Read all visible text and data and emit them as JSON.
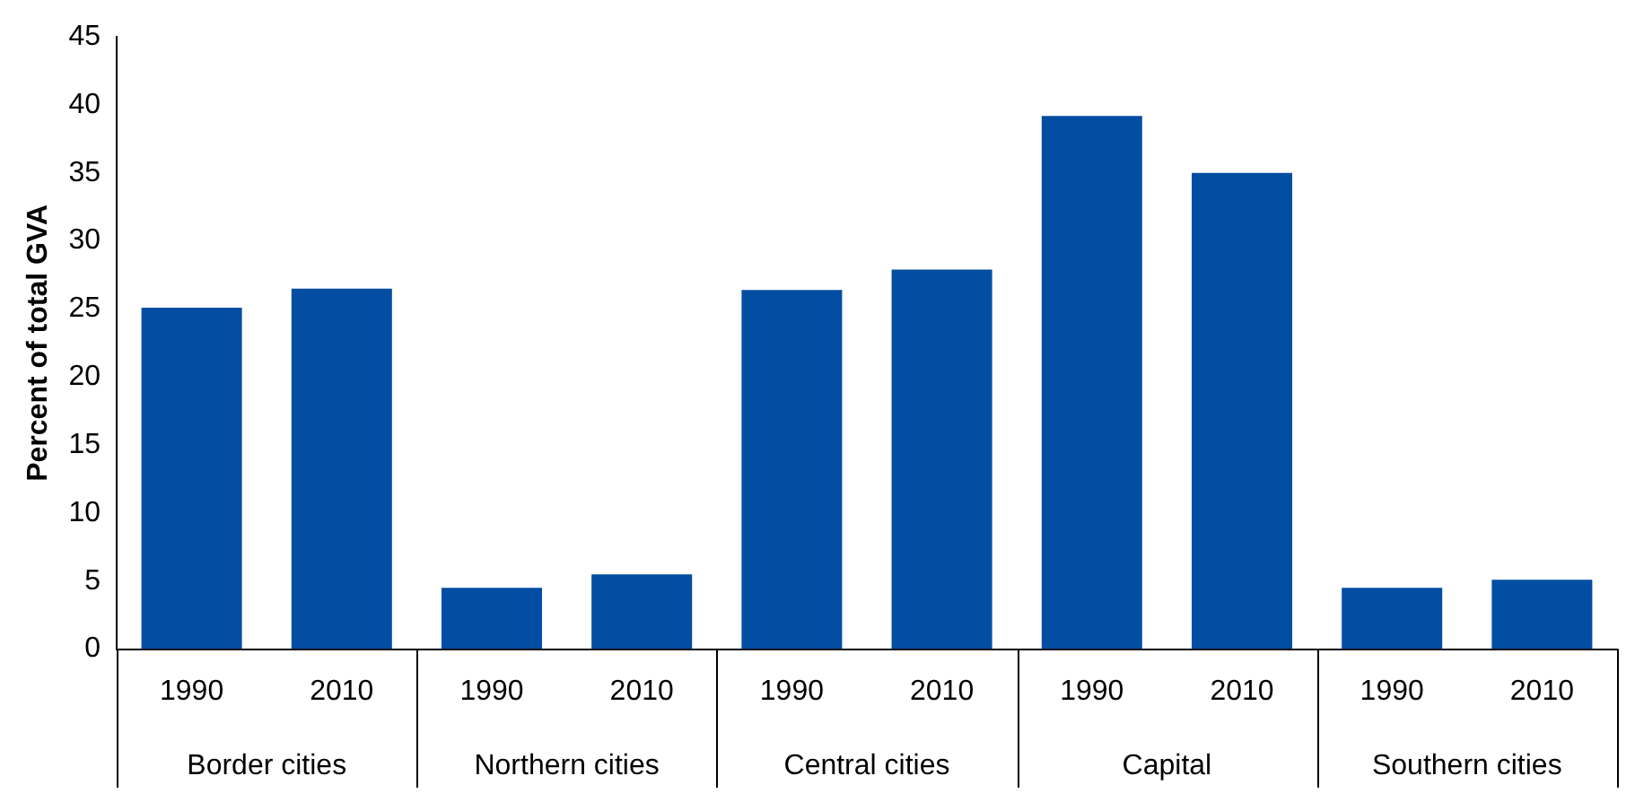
{
  "chart_data": {
    "type": "bar",
    "ylabel": "Percent of total GVA",
    "categories": [
      "1990",
      "2010",
      "1990",
      "2010",
      "1990",
      "2010",
      "1990",
      "2010",
      "1990",
      "2010"
    ],
    "values": [
      25.1,
      26.5,
      4.5,
      5.5,
      26.4,
      27.9,
      39.2,
      35.0,
      4.5,
      5.1
    ],
    "color": "#034ea2",
    "ylim": [
      0,
      45
    ],
    "yticks": [
      0,
      5,
      10,
      15,
      20,
      25,
      30,
      35,
      40,
      45
    ],
    "grid": false,
    "legend": false,
    "annotations": [
      "Border cities",
      "Northern cities",
      "Central cities",
      "Capital",
      "Southern cities"
    ]
  }
}
